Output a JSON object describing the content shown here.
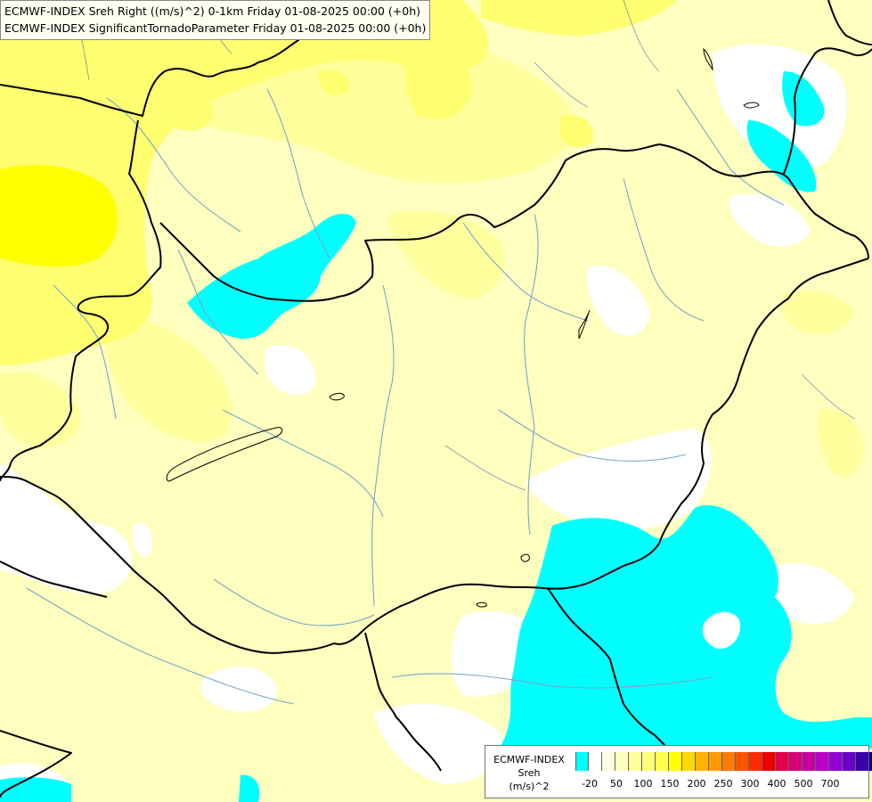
{
  "title": {
    "line1": "ECMWF-INDEX Sreh Right ((m/s)^2) 0-1km Friday 01-08-2025 00:00 (+0h)",
    "line2": "ECMWF-INDEX SignificantTornadoParameter Friday 01-08-2025 00:00 (+0h)"
  },
  "legend": {
    "source": "ECMWF-INDEX",
    "variable": "Sreh",
    "unit": "(m/s)^2",
    "colors": [
      "#00ffff",
      "#ffffff",
      "#ffffe0",
      "#ffffc0",
      "#ffff9e",
      "#ffff7a",
      "#ffff50",
      "#ffff00",
      "#ffd800",
      "#ffb400",
      "#ff9900",
      "#ff7a00",
      "#ff5500",
      "#ff2a00",
      "#ee0000",
      "#e0004a",
      "#d6007a",
      "#c800a0",
      "#b800c8",
      "#9400d8",
      "#6a00c8",
      "#3800a8",
      "#000080"
    ],
    "tick_labels": [
      "-20",
      "50",
      "100",
      "150",
      "200",
      "250",
      "300",
      "400",
      "500",
      "700"
    ]
  },
  "map": {
    "colors": {
      "background": "#ffffff",
      "pale": "#ffffc0",
      "light": "#ffff9e",
      "yellow": "#ffff70",
      "bright": "#ffff00",
      "cyan": "#00ffff",
      "border": "#000000",
      "river": "#7aa6c8"
    }
  }
}
